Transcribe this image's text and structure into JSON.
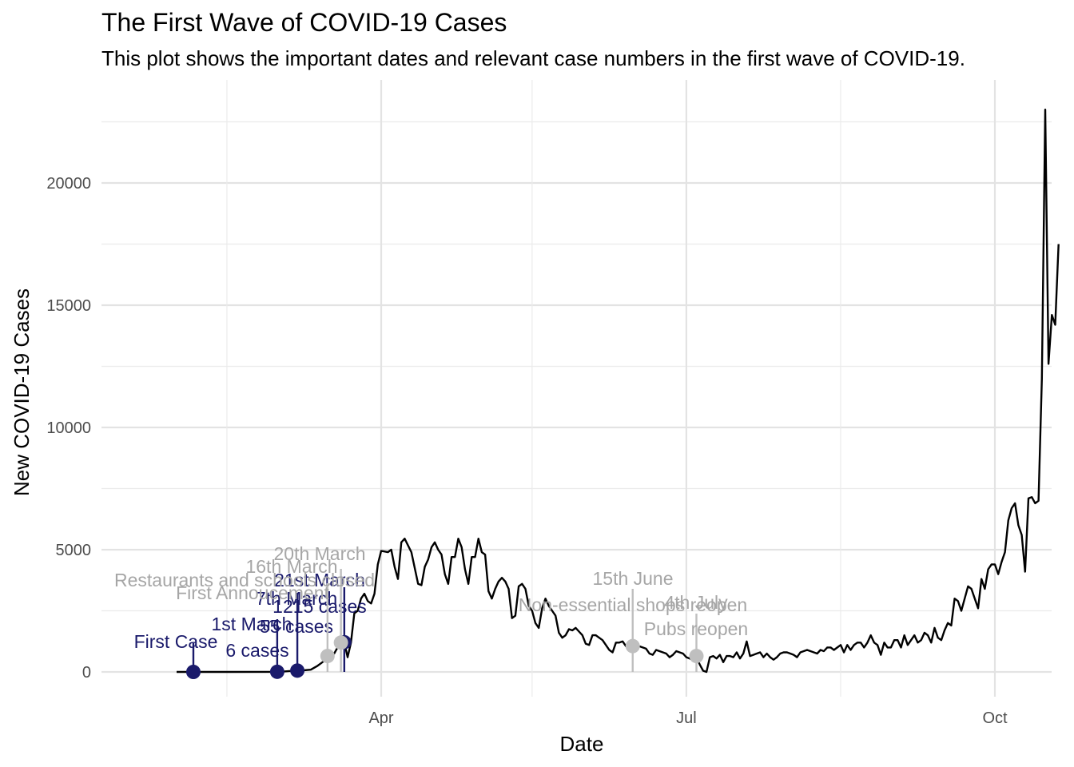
{
  "title": "The First Wave of COVID-19 Cases",
  "subtitle": "This plot shows the important dates and relevant case numbers in the first wave of COVID-19.",
  "chart_data": {
    "type": "line",
    "title": "The First Wave of COVID-19 Cases",
    "subtitle": "This plot shows the important dates and relevant case numbers in the first wave of COVID-19.",
    "xlabel": "Date",
    "ylabel": "New COVID-19 Cases",
    "x_type": "date",
    "xlim": [
      "2020-01-15",
      "2020-10-18"
    ],
    "ylim": [
      -1000,
      24000
    ],
    "x_ticks": [
      {
        "date": "2020-04-01",
        "label": "Apr"
      },
      {
        "date": "2020-07-01",
        "label": "Jul"
      },
      {
        "date": "2020-10-01",
        "label": "Oct"
      }
    ],
    "x_minor_gridlines": [
      "2020-02-15",
      "2020-05-16",
      "2020-08-16"
    ],
    "y_ticks": [
      0,
      5000,
      10000,
      15000,
      20000
    ],
    "y_minor_gridlines": [
      2500,
      7500,
      12500,
      17500,
      22500
    ],
    "grid": true,
    "colors": {
      "line": "#000000",
      "navy": "#1a1a6b",
      "grey": "#bfbfbf"
    },
    "series": [
      {
        "points": [
          [
            "2020-01-31",
            0
          ],
          [
            "2020-02-15",
            0
          ],
          [
            "2020-02-29",
            3
          ],
          [
            "2020-03-03",
            20
          ],
          [
            "2020-03-05",
            40
          ],
          [
            "2020-03-07",
            55
          ],
          [
            "2020-03-09",
            70
          ],
          [
            "2020-03-11",
            90
          ],
          [
            "2020-03-13",
            250
          ],
          [
            "2020-03-14",
            350
          ],
          [
            "2020-03-15",
            450
          ],
          [
            "2020-03-16",
            400
          ],
          [
            "2020-03-17",
            650
          ],
          [
            "2020-03-18",
            750
          ],
          [
            "2020-03-19",
            1000
          ],
          [
            "2020-03-20",
            1200
          ],
          [
            "2020-03-21",
            1215
          ],
          [
            "2020-03-22",
            600
          ],
          [
            "2020-03-23",
            1200
          ],
          [
            "2020-03-24",
            2400
          ],
          [
            "2020-03-25",
            2500
          ],
          [
            "2020-03-26",
            3000
          ],
          [
            "2020-03-27",
            3200
          ],
          [
            "2020-03-28",
            2900
          ],
          [
            "2020-03-29",
            2800
          ],
          [
            "2020-03-30",
            3200
          ],
          [
            "2020-03-31",
            4400
          ],
          [
            "2020-04-01",
            4950
          ],
          [
            "2020-04-03",
            4900
          ],
          [
            "2020-04-04",
            5000
          ],
          [
            "2020-04-05",
            4300
          ],
          [
            "2020-04-06",
            3800
          ],
          [
            "2020-04-07",
            5300
          ],
          [
            "2020-04-08",
            5450
          ],
          [
            "2020-04-10",
            4900
          ],
          [
            "2020-04-12",
            3600
          ],
          [
            "2020-04-13",
            3550
          ],
          [
            "2020-04-14",
            4300
          ],
          [
            "2020-04-15",
            4600
          ],
          [
            "2020-04-16",
            5100
          ],
          [
            "2020-04-17",
            5300
          ],
          [
            "2020-04-18",
            5000
          ],
          [
            "2020-04-19",
            4800
          ],
          [
            "2020-04-20",
            4000
          ],
          [
            "2020-04-21",
            3600
          ],
          [
            "2020-04-22",
            4700
          ],
          [
            "2020-04-23",
            4700
          ],
          [
            "2020-04-24",
            5450
          ],
          [
            "2020-04-25",
            5100
          ],
          [
            "2020-04-26",
            4200
          ],
          [
            "2020-04-27",
            3600
          ],
          [
            "2020-04-28",
            4700
          ],
          [
            "2020-04-29",
            4700
          ],
          [
            "2020-04-30",
            5450
          ],
          [
            "2020-05-01",
            4900
          ],
          [
            "2020-05-02",
            4800
          ],
          [
            "2020-05-03",
            3300
          ],
          [
            "2020-05-04",
            3000
          ],
          [
            "2020-05-05",
            3400
          ],
          [
            "2020-05-06",
            3700
          ],
          [
            "2020-05-07",
            3850
          ],
          [
            "2020-05-08",
            3700
          ],
          [
            "2020-05-09",
            3400
          ],
          [
            "2020-05-10",
            2200
          ],
          [
            "2020-05-11",
            2300
          ],
          [
            "2020-05-12",
            3500
          ],
          [
            "2020-05-13",
            3600
          ],
          [
            "2020-05-14",
            3400
          ],
          [
            "2020-05-15",
            2700
          ],
          [
            "2020-05-16",
            2500
          ],
          [
            "2020-05-17",
            2000
          ],
          [
            "2020-05-18",
            1800
          ],
          [
            "2020-05-19",
            2600
          ],
          [
            "2020-05-20",
            3000
          ],
          [
            "2020-05-21",
            2700
          ],
          [
            "2020-05-22",
            2500
          ],
          [
            "2020-05-23",
            2300
          ],
          [
            "2020-05-24",
            1600
          ],
          [
            "2020-05-25",
            1400
          ],
          [
            "2020-05-26",
            1500
          ],
          [
            "2020-05-27",
            1750
          ],
          [
            "2020-05-28",
            1700
          ],
          [
            "2020-05-29",
            1800
          ],
          [
            "2020-05-30",
            1650
          ],
          [
            "2020-05-31",
            1500
          ],
          [
            "2020-06-01",
            1150
          ],
          [
            "2020-06-02",
            1100
          ],
          [
            "2020-06-03",
            1500
          ],
          [
            "2020-06-04",
            1500
          ],
          [
            "2020-06-05",
            1400
          ],
          [
            "2020-06-06",
            1300
          ],
          [
            "2020-06-07",
            1100
          ],
          [
            "2020-06-08",
            900
          ],
          [
            "2020-06-09",
            800
          ],
          [
            "2020-06-10",
            1200
          ],
          [
            "2020-06-11",
            1200
          ],
          [
            "2020-06-12",
            1250
          ],
          [
            "2020-06-13",
            1050
          ],
          [
            "2020-06-14",
            1100
          ],
          [
            "2020-06-15",
            1056
          ],
          [
            "2020-06-16",
            1100
          ],
          [
            "2020-06-17",
            1050
          ],
          [
            "2020-06-18",
            1000
          ],
          [
            "2020-06-19",
            950
          ],
          [
            "2020-06-20",
            750
          ],
          [
            "2020-06-21",
            700
          ],
          [
            "2020-06-22",
            900
          ],
          [
            "2020-06-23",
            850
          ],
          [
            "2020-06-24",
            800
          ],
          [
            "2020-06-25",
            750
          ],
          [
            "2020-06-26",
            600
          ],
          [
            "2020-06-27",
            700
          ],
          [
            "2020-06-28",
            850
          ],
          [
            "2020-06-29",
            800
          ],
          [
            "2020-06-30",
            750
          ],
          [
            "2020-07-01",
            600
          ],
          [
            "2020-07-02",
            550
          ],
          [
            "2020-07-03",
            500
          ],
          [
            "2020-07-04",
            600
          ],
          [
            "2020-07-05",
            300
          ],
          [
            "2020-07-06",
            50
          ],
          [
            "2020-07-07",
            0
          ],
          [
            "2020-07-08",
            600
          ],
          [
            "2020-07-09",
            650
          ],
          [
            "2020-07-10",
            550
          ],
          [
            "2020-07-11",
            700
          ],
          [
            "2020-07-12",
            400
          ],
          [
            "2020-07-13",
            650
          ],
          [
            "2020-07-14",
            650
          ],
          [
            "2020-07-15",
            600
          ],
          [
            "2020-07-16",
            800
          ],
          [
            "2020-07-17",
            550
          ],
          [
            "2020-07-18",
            750
          ],
          [
            "2020-07-19",
            1250
          ],
          [
            "2020-07-20",
            650
          ],
          [
            "2020-07-21",
            700
          ],
          [
            "2020-07-22",
            750
          ],
          [
            "2020-07-23",
            800
          ],
          [
            "2020-07-24",
            600
          ],
          [
            "2020-07-25",
            750
          ],
          [
            "2020-07-26",
            600
          ],
          [
            "2020-07-27",
            500
          ],
          [
            "2020-07-28",
            600
          ],
          [
            "2020-07-29",
            750
          ],
          [
            "2020-07-30",
            800
          ],
          [
            "2020-07-31",
            800
          ],
          [
            "2020-08-01",
            750
          ],
          [
            "2020-08-02",
            700
          ],
          [
            "2020-08-03",
            600
          ],
          [
            "2020-08-04",
            800
          ],
          [
            "2020-08-05",
            850
          ],
          [
            "2020-08-06",
            900
          ],
          [
            "2020-08-07",
            850
          ],
          [
            "2020-08-08",
            800
          ],
          [
            "2020-08-09",
            750
          ],
          [
            "2020-08-10",
            900
          ],
          [
            "2020-08-11",
            850
          ],
          [
            "2020-08-12",
            1000
          ],
          [
            "2020-08-13",
            1000
          ],
          [
            "2020-08-14",
            900
          ],
          [
            "2020-08-15",
            1000
          ],
          [
            "2020-08-16",
            1100
          ],
          [
            "2020-08-17",
            800
          ],
          [
            "2020-08-18",
            1100
          ],
          [
            "2020-08-19",
            900
          ],
          [
            "2020-08-20",
            1100
          ],
          [
            "2020-08-21",
            1200
          ],
          [
            "2020-08-22",
            1200
          ],
          [
            "2020-08-23",
            1000
          ],
          [
            "2020-08-24",
            1200
          ],
          [
            "2020-08-25",
            1500
          ],
          [
            "2020-08-26",
            1200
          ],
          [
            "2020-08-27",
            1100
          ],
          [
            "2020-08-28",
            700
          ],
          [
            "2020-08-29",
            1200
          ],
          [
            "2020-08-30",
            1000
          ],
          [
            "2020-08-31",
            1000
          ],
          [
            "2020-09-01",
            1300
          ],
          [
            "2020-09-02",
            1300
          ],
          [
            "2020-09-03",
            1000
          ],
          [
            "2020-09-04",
            1500
          ],
          [
            "2020-09-05",
            1100
          ],
          [
            "2020-09-06",
            1300
          ],
          [
            "2020-09-07",
            1500
          ],
          [
            "2020-09-08",
            1200
          ],
          [
            "2020-09-09",
            1300
          ],
          [
            "2020-09-10",
            1600
          ],
          [
            "2020-09-11",
            1500
          ],
          [
            "2020-09-12",
            1200
          ],
          [
            "2020-09-13",
            1800
          ],
          [
            "2020-09-14",
            1400
          ],
          [
            "2020-09-15",
            1300
          ],
          [
            "2020-09-16",
            1700
          ],
          [
            "2020-09-17",
            2000
          ],
          [
            "2020-09-18",
            1900
          ],
          [
            "2020-09-19",
            3000
          ],
          [
            "2020-09-20",
            2900
          ],
          [
            "2020-09-21",
            2500
          ],
          [
            "2020-09-22",
            3000
          ],
          [
            "2020-09-23",
            3500
          ],
          [
            "2020-09-24",
            3400
          ],
          [
            "2020-09-25",
            3000
          ],
          [
            "2020-09-26",
            2600
          ],
          [
            "2020-09-27",
            3800
          ],
          [
            "2020-09-28",
            3400
          ],
          [
            "2020-09-29",
            4200
          ],
          [
            "2020-09-30",
            4400
          ],
          [
            "2020-10-01",
            4400
          ],
          [
            "2020-10-02",
            4000
          ],
          [
            "2020-10-03",
            4500
          ],
          [
            "2020-10-04",
            4900
          ],
          [
            "2020-10-05",
            6200
          ],
          [
            "2020-10-06",
            6700
          ],
          [
            "2020-10-07",
            6900
          ],
          [
            "2020-10-08",
            6000
          ],
          [
            "2020-10-09",
            5600
          ],
          [
            "2020-10-10",
            4100
          ],
          [
            "2020-10-11",
            7100
          ],
          [
            "2020-10-12",
            7150
          ],
          [
            "2020-10-13",
            6900
          ],
          [
            "2020-10-14",
            7000
          ],
          [
            "2020-10-15",
            12000
          ],
          [
            "2020-10-16",
            23000
          ],
          [
            "2020-10-17",
            12600
          ],
          [
            "2020-10-18",
            14600
          ],
          [
            "2020-10-19",
            14200
          ],
          [
            "2020-10-20",
            17500
          ]
        ]
      }
    ],
    "annotations": [
      {
        "date": "2020-02-05",
        "value": 0,
        "color": "navy",
        "lines": [
          "First Case"
        ]
      },
      {
        "date": "2020-03-01",
        "value": 6,
        "color": "navy",
        "lines": [
          "1st March",
          "6 cases"
        ]
      },
      {
        "date": "2020-03-07",
        "value": 55,
        "color": "navy",
        "lines": [
          "7th March",
          "55 cases"
        ]
      },
      {
        "date": "2020-03-21",
        "value": 1215,
        "color": "navy",
        "lines": [
          "21st March",
          "1215 cases"
        ]
      },
      {
        "date": "2020-03-16",
        "value": 650,
        "color": "grey",
        "lines": [
          "16th March",
          "First Annoucement"
        ]
      },
      {
        "date": "2020-03-20",
        "value": 1200,
        "color": "grey",
        "lines": [
          "20th March",
          "Restaurants and schools closed"
        ]
      },
      {
        "date": "2020-06-15",
        "value": 1056,
        "color": "grey",
        "lines": [
          "15th June",
          "Non-essential shops reopen"
        ]
      },
      {
        "date": "2020-07-04",
        "value": 650,
        "color": "grey",
        "lines": [
          "4th July",
          "Pubs reopen"
        ]
      }
    ]
  }
}
